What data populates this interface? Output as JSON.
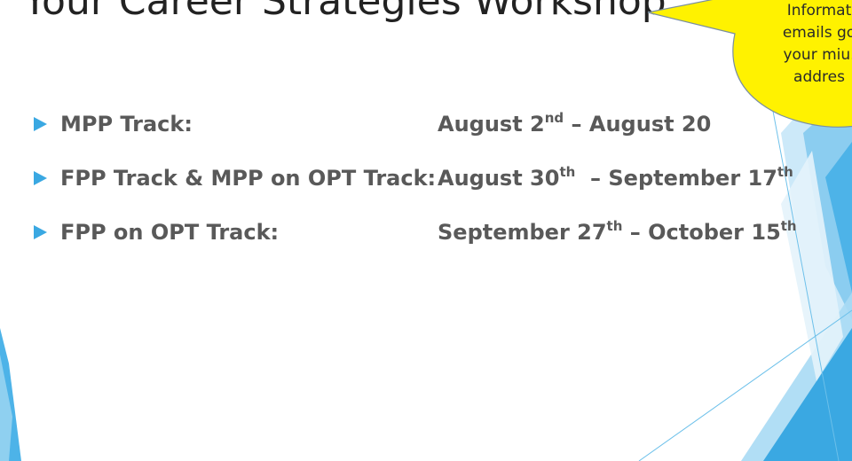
{
  "slide": {
    "title": "Your Career Strategies Workshop:",
    "callout": {
      "lines": [
        "Informat",
        "emails go",
        "your miu.",
        "addres"
      ],
      "color": "#fff200"
    },
    "accent_color": "#3aa8e2",
    "tracks": [
      {
        "label": "MPP Track:",
        "start": "August 2",
        "start_suffix": "nd",
        "separator": " – ",
        "end": "August 20",
        "end_suffix": ""
      },
      {
        "label": "FPP Track & MPP on OPT Track:",
        "start": "August 30",
        "start_suffix": "th",
        "separator": "  – ",
        "end": "September 17",
        "end_suffix": "th"
      },
      {
        "label": "FPP on OPT Track:",
        "start": "September 27",
        "start_suffix": "th",
        "separator": " – ",
        "end": "October 15",
        "end_suffix": "th"
      }
    ]
  }
}
